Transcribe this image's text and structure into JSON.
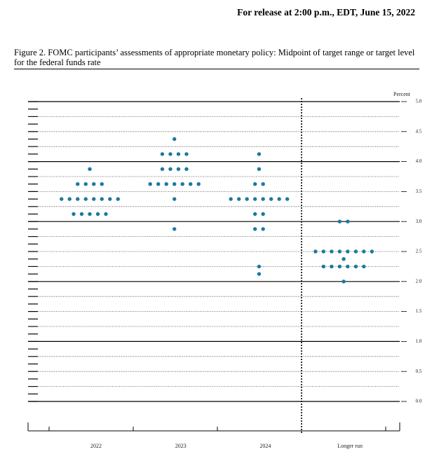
{
  "header": "For release at 2:00 p.m., EDT, June 15, 2022",
  "chart_data": {
    "type": "dot",
    "title": "Figure 2.  FOMC participants’ assessments of appropriate monetary policy: Midpoint of target range or target level for the federal funds rate",
    "y_label": "Percent",
    "color": "#1b7a9e",
    "categories": [
      "2022",
      "2023",
      "2024",
      "Longer run"
    ],
    "values": [
      [
        3.875,
        3.625,
        3.625,
        3.625,
        3.625,
        3.375,
        3.375,
        3.375,
        3.375,
        3.375,
        3.375,
        3.375,
        3.375,
        3.125,
        3.125,
        3.125,
        3.125,
        3.125
      ],
      [
        4.375,
        4.125,
        4.125,
        4.125,
        4.125,
        3.875,
        3.875,
        3.875,
        3.875,
        3.625,
        3.625,
        3.625,
        3.625,
        3.625,
        3.625,
        3.625,
        3.375,
        2.875
      ],
      [
        4.125,
        3.875,
        3.625,
        3.625,
        3.375,
        3.375,
        3.375,
        3.375,
        3.375,
        3.375,
        3.375,
        3.375,
        3.125,
        3.125,
        2.875,
        2.875,
        2.25,
        2.125
      ],
      [
        3.0,
        3.0,
        2.5,
        2.5,
        2.5,
        2.5,
        2.5,
        2.5,
        2.5,
        2.5,
        2.375,
        2.25,
        2.25,
        2.25,
        2.25,
        2.25,
        2.25,
        2.0
      ]
    ],
    "ylim": [
      0,
      5
    ],
    "yticks": [
      {
        "value": 0,
        "label": "0.0"
      },
      {
        "value": 0.5,
        "label": "0.5"
      },
      {
        "value": 1,
        "label": "1.0"
      },
      {
        "value": 1.5,
        "label": "1.5"
      },
      {
        "value": 2,
        "label": "2.0"
      },
      {
        "value": 2.5,
        "label": "2.5"
      },
      {
        "value": 3,
        "label": "3.0"
      },
      {
        "value": 3.5,
        "label": "3.5"
      },
      {
        "value": 4,
        "label": "4.0"
      },
      {
        "value": 4.5,
        "label": "4.5"
      },
      {
        "value": 5,
        "label": "5.0"
      }
    ],
    "grid": true
  }
}
